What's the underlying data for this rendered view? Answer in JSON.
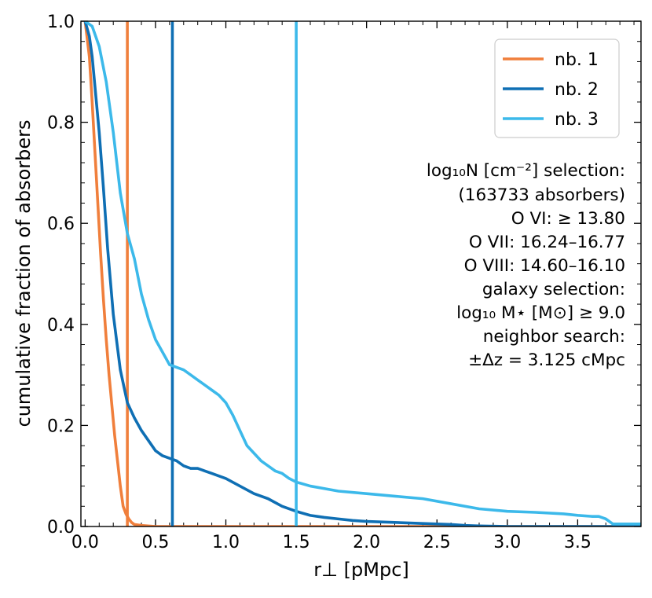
{
  "chart_data": {
    "type": "line",
    "xlabel": "r⊥ [pMpc]",
    "ylabel": "cumulative fraction of absorbers",
    "xlim": [
      -0.03,
      3.95
    ],
    "ylim": [
      0.0,
      1.0
    ],
    "xticks": [
      0.0,
      0.5,
      1.0,
      1.5,
      2.0,
      2.5,
      3.0,
      3.5
    ],
    "xtick_labels": [
      "0.0",
      "0.5",
      "1.0",
      "1.5",
      "2.0",
      "2.5",
      "3.0",
      "3.5"
    ],
    "yticks": [
      0.0,
      0.2,
      0.4,
      0.6,
      0.8,
      1.0
    ],
    "ytick_labels": [
      "0.0",
      "0.2",
      "0.4",
      "0.6",
      "0.8",
      "1.0"
    ],
    "legend_position": "top-right",
    "series": [
      {
        "name": "nb. 1",
        "color": "#f07f3c",
        "vline": 0.3,
        "x": [
          0.0,
          0.03,
          0.05,
          0.07,
          0.09,
          0.11,
          0.13,
          0.15,
          0.17,
          0.19,
          0.21,
          0.23,
          0.25,
          0.27,
          0.29,
          0.31,
          0.33,
          0.35,
          0.4,
          0.5,
          1.0,
          2.0,
          3.0,
          3.95
        ],
        "y": [
          1.0,
          0.93,
          0.84,
          0.74,
          0.64,
          0.54,
          0.45,
          0.37,
          0.3,
          0.24,
          0.18,
          0.13,
          0.08,
          0.04,
          0.025,
          0.015,
          0.008,
          0.004,
          0.002,
          0.0,
          0.0,
          0.0,
          0.0,
          0.0
        ]
      },
      {
        "name": "nb. 2",
        "color": "#0f6fb4",
        "vline": 0.62,
        "x": [
          0.0,
          0.03,
          0.05,
          0.07,
          0.1,
          0.13,
          0.16,
          0.2,
          0.25,
          0.3,
          0.35,
          0.4,
          0.45,
          0.5,
          0.55,
          0.6,
          0.65,
          0.7,
          0.75,
          0.8,
          0.85,
          0.9,
          1.0,
          1.1,
          1.2,
          1.3,
          1.4,
          1.5,
          1.6,
          1.7,
          1.8,
          1.9,
          2.0,
          2.2,
          2.4,
          2.6,
          2.7,
          2.8,
          3.0,
          3.5,
          3.95
        ],
        "y": [
          1.0,
          0.97,
          0.93,
          0.87,
          0.78,
          0.67,
          0.55,
          0.42,
          0.31,
          0.245,
          0.215,
          0.19,
          0.17,
          0.15,
          0.14,
          0.135,
          0.13,
          0.12,
          0.115,
          0.115,
          0.11,
          0.105,
          0.095,
          0.08,
          0.065,
          0.055,
          0.04,
          0.03,
          0.022,
          0.018,
          0.015,
          0.012,
          0.01,
          0.008,
          0.006,
          0.004,
          0.002,
          0.001,
          0.0,
          0.0,
          0.0
        ]
      },
      {
        "name": "nb. 3",
        "color": "#3cb9ea",
        "vline": 1.5,
        "x": [
          0.0,
          0.05,
          0.1,
          0.15,
          0.2,
          0.25,
          0.3,
          0.35,
          0.4,
          0.45,
          0.5,
          0.55,
          0.6,
          0.65,
          0.7,
          0.75,
          0.8,
          0.85,
          0.9,
          0.95,
          1.0,
          1.05,
          1.1,
          1.15,
          1.2,
          1.25,
          1.3,
          1.35,
          1.4,
          1.45,
          1.5,
          1.6,
          1.7,
          1.8,
          2.0,
          2.2,
          2.4,
          2.6,
          2.8,
          3.0,
          3.2,
          3.4,
          3.5,
          3.6,
          3.65,
          3.7,
          3.75,
          3.95
        ],
        "y": [
          1.0,
          0.99,
          0.95,
          0.88,
          0.78,
          0.66,
          0.58,
          0.53,
          0.46,
          0.41,
          0.37,
          0.345,
          0.32,
          0.315,
          0.31,
          0.3,
          0.29,
          0.28,
          0.27,
          0.26,
          0.245,
          0.22,
          0.19,
          0.16,
          0.145,
          0.13,
          0.12,
          0.11,
          0.105,
          0.095,
          0.088,
          0.08,
          0.075,
          0.07,
          0.065,
          0.06,
          0.055,
          0.045,
          0.035,
          0.03,
          0.028,
          0.025,
          0.022,
          0.02,
          0.02,
          0.015,
          0.005,
          0.005
        ]
      }
    ],
    "annotations": {
      "line1": "log₁₀N [cm⁻²] selection:",
      "line2": "(163733 absorbers)",
      "line3": "O VI:  ≥ 13.80",
      "line4": "O VII: 16.24–16.77",
      "line5": "O VIII: 14.60–16.10",
      "line6": "galaxy selection:",
      "line7": "log₁₀ M⋆ [M⊙]  ≥ 9.0",
      "line8": "neighbor search:",
      "line9": "±Δz = 3.125 cMpc"
    }
  }
}
